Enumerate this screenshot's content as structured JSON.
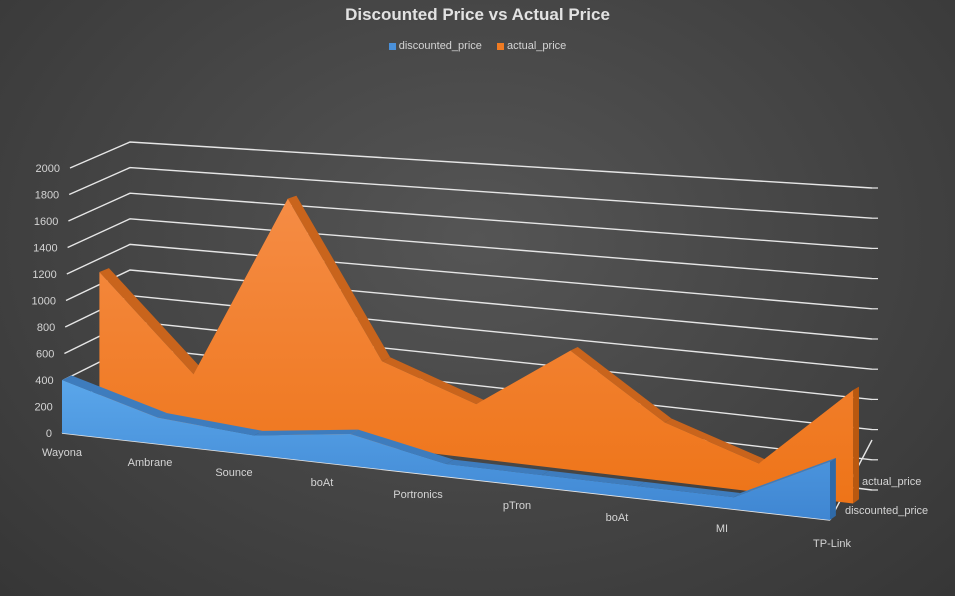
{
  "chart_data": {
    "type": "area",
    "subtype": "3d-area",
    "title": "Discounted Price vs Actual Price",
    "categories": [
      "Wayona",
      "Ambrane",
      "Sounce",
      "boAt",
      "Portronics",
      "pTron",
      "boAt",
      "MI",
      "TP-Link"
    ],
    "series": [
      {
        "name": "discounted_price",
        "color": "#4a90d9",
        "values": [
          400,
          200,
          150,
          250,
          100,
          100,
          100,
          100,
          500
        ]
      },
      {
        "name": "actual_price",
        "color": "#f07b22",
        "values": [
          1100,
          400,
          1900,
          700,
          450,
          1000,
          500,
          250,
          1000
        ]
      }
    ],
    "yticks": [
      0,
      200,
      400,
      600,
      800,
      1000,
      1200,
      1400,
      1600,
      1800,
      2000
    ],
    "ylim": [
      0,
      2000
    ],
    "depth_labels": [
      "actual_price",
      "discounted_price"
    ],
    "xlabel": "",
    "ylabel": "",
    "grid": true,
    "legend_position": "top"
  },
  "legend": {
    "items": [
      {
        "label": "discounted_price",
        "color": "#4a90d9"
      },
      {
        "label": "actual_price",
        "color": "#f07b22"
      }
    ]
  }
}
